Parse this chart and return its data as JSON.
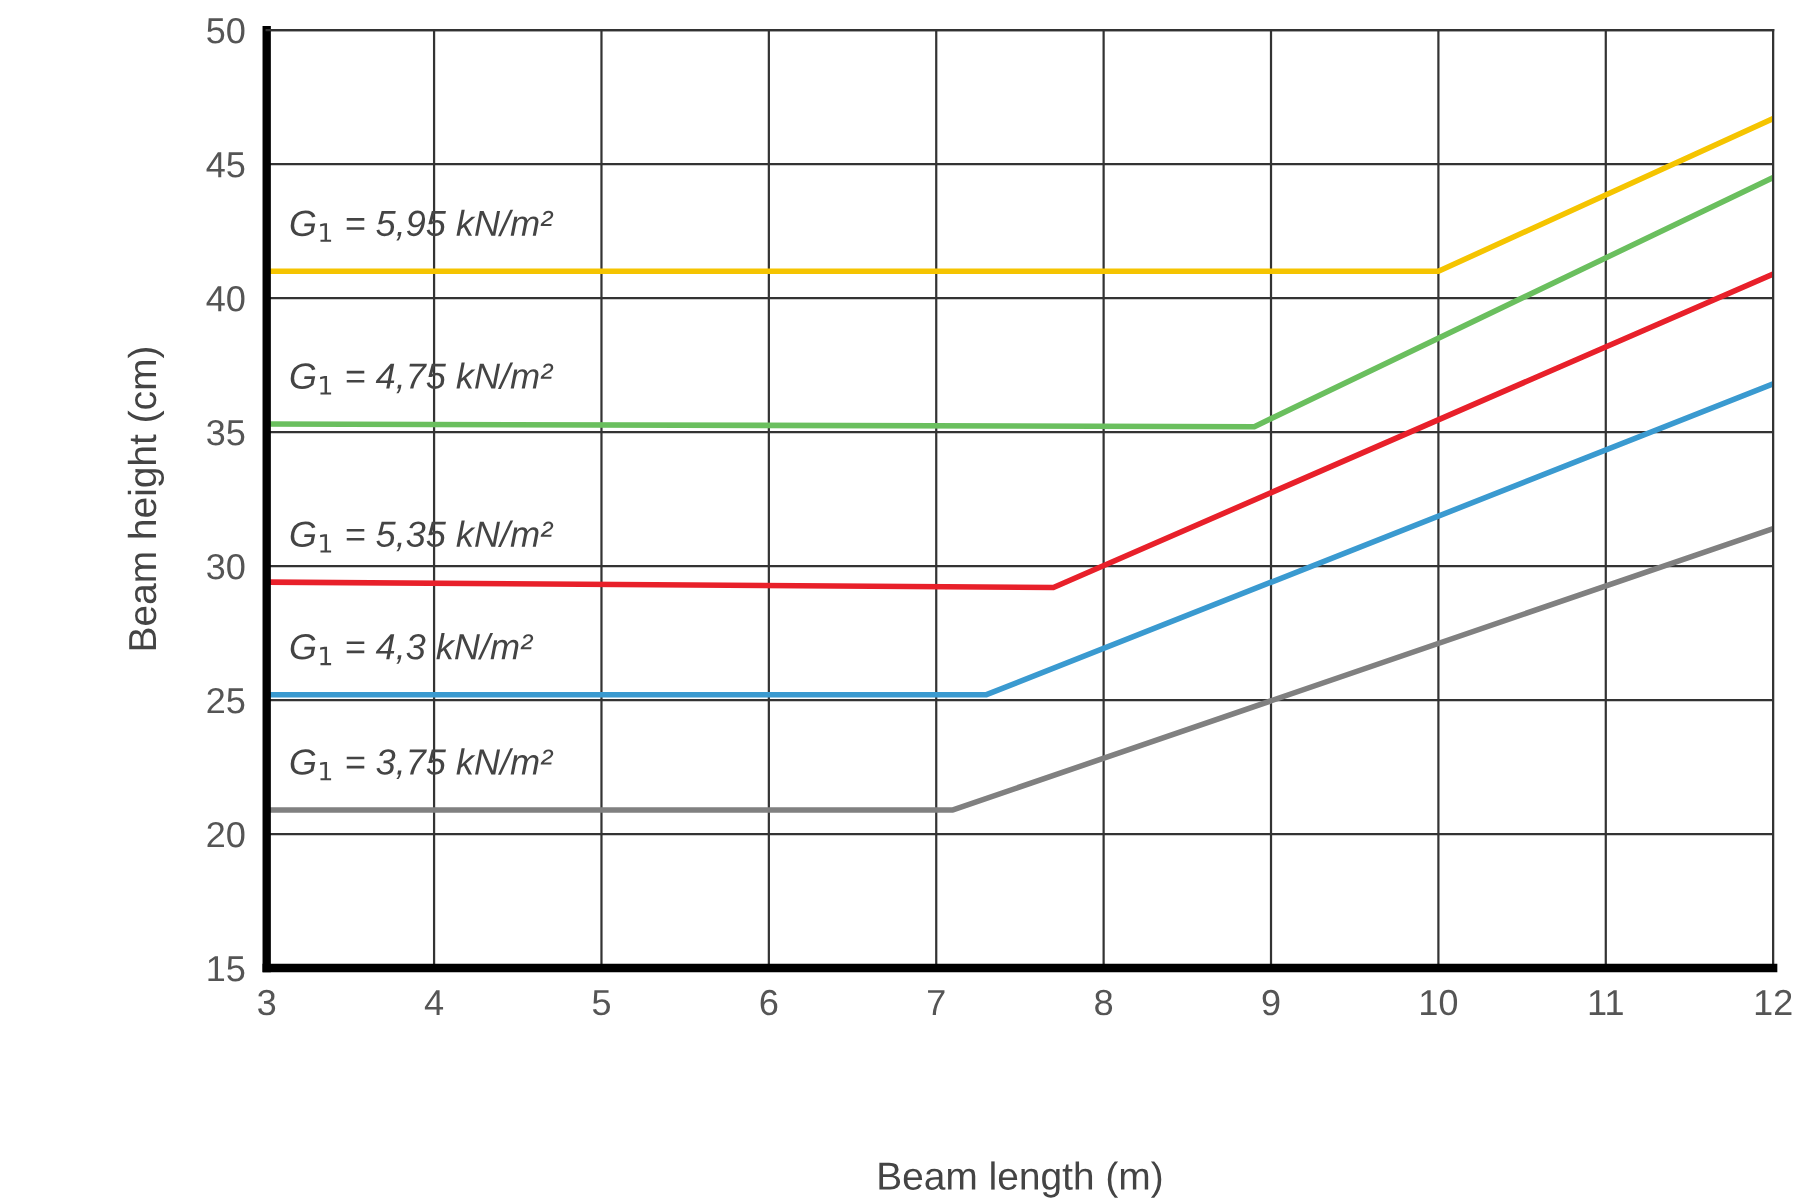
{
  "chart_data": {
    "type": "line",
    "xlabel": "Beam length (m)",
    "ylabel": "Beam height (cm)",
    "xlim": [
      3,
      12
    ],
    "xticks": [
      3,
      4,
      5,
      6,
      7,
      8,
      9,
      10,
      11,
      12
    ],
    "ylim": [
      15,
      50
    ],
    "yticks": [
      15,
      20,
      25,
      30,
      35,
      40,
      45,
      50
    ],
    "grid": true,
    "legend": false,
    "marker": "none",
    "line_style": "solid",
    "series": [
      {
        "name": "G$_{1}$ = 5,95 kN/m²",
        "color": "#f5c400",
        "x": [
          3,
          10,
          12
        ],
        "values": [
          41.0,
          41.0,
          46.7
        ]
      },
      {
        "name": "G$_{1}$ = 4,75 kN/m²",
        "color": "#6abf5e",
        "x": [
          3,
          8.9,
          12
        ],
        "values": [
          35.3,
          35.2,
          44.5
        ]
      },
      {
        "name": "G$_{1}$ = 5,35 kN/m²",
        "color": "#e8202a",
        "x": [
          3,
          7.7,
          12
        ],
        "values": [
          29.4,
          29.2,
          40.9
        ]
      },
      {
        "name": "G$_{1}$ = 4,3 kN/m²",
        "color": "#3a9ad0",
        "x": [
          3,
          7.3,
          12
        ],
        "values": [
          25.2,
          25.2,
          36.8
        ]
      },
      {
        "name": "G$_{1}$ = 3,75 kN/m²",
        "color": "#808080",
        "x": [
          3,
          7.1,
          12
        ],
        "values": [
          20.9,
          20.9,
          31.4
        ]
      }
    ]
  }
}
